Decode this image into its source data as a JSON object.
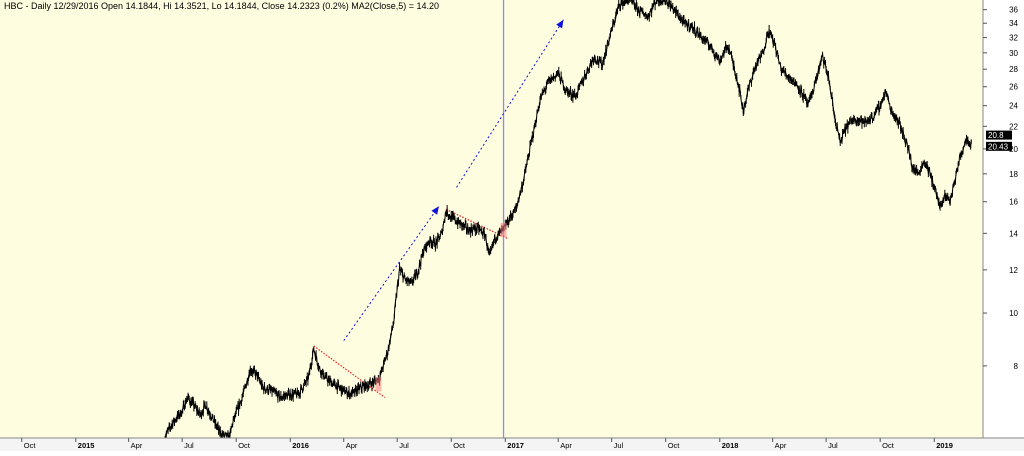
{
  "title": "HBC - Daily 12/29/2016 Open 14.1844, Hi 14.3521, Lo 14.1844, Close 14.2323 (0.2%) MA2(Close,5) = 14.20",
  "colors": {
    "background": "#fffde0",
    "price": "#000000",
    "vertical_line": "#8a8aff",
    "red_line": "#e02020",
    "blue_arrow": "#1010dd",
    "y_axis_bg": "#ffffff",
    "x_axis_bg": "#f4f4f4"
  },
  "chart_data": {
    "type": "line",
    "title": "HBC - Daily 12/29/2016 Open 14.1844, Hi 14.3521, Lo 14.1844, Close 14.2323 (0.2%) MA2(Close,5) = 14.20",
    "xlabel": "",
    "ylabel": "",
    "y_scale": "log",
    "ylim": [
      5.9,
      37.5
    ],
    "y_ticks": [
      8,
      10,
      12,
      14,
      16,
      18,
      20,
      22,
      24,
      26,
      28,
      30,
      32,
      34,
      36
    ],
    "x_ticks": [
      {
        "label": "Oct",
        "date": "2014-10-01"
      },
      {
        "label": "2015",
        "date": "2015-01-01"
      },
      {
        "label": "Apr",
        "date": "2015-04-01"
      },
      {
        "label": "Jul",
        "date": "2015-07-01"
      },
      {
        "label": "Oct",
        "date": "2015-10-01"
      },
      {
        "label": "2016",
        "date": "2016-01-01"
      },
      {
        "label": "Apr",
        "date": "2016-04-01"
      },
      {
        "label": "Jul",
        "date": "2016-07-01"
      },
      {
        "label": "Oct",
        "date": "2016-10-01"
      },
      {
        "label": "2017",
        "date": "2017-01-01"
      },
      {
        "label": "Apr",
        "date": "2017-04-01"
      },
      {
        "label": "Jul",
        "date": "2017-07-01"
      },
      {
        "label": "Oct",
        "date": "2017-10-01"
      },
      {
        "label": "2018",
        "date": "2018-01-01"
      },
      {
        "label": "Apr",
        "date": "2018-04-01"
      },
      {
        "label": "Jul",
        "date": "2018-07-01"
      },
      {
        "label": "Oct",
        "date": "2018-10-01"
      },
      {
        "label": "2019",
        "date": "2019-01-01"
      }
    ],
    "last_price_labels": [
      "20.8",
      "20.43"
    ],
    "series": [
      {
        "values": [
          [
            "2015-06-01",
            5.9
          ],
          [
            "2015-06-15",
            6.3
          ],
          [
            "2015-07-01",
            6.6
          ],
          [
            "2015-07-10",
            7.0
          ],
          [
            "2015-07-20",
            6.8
          ],
          [
            "2015-08-01",
            6.5
          ],
          [
            "2015-08-10",
            6.8
          ],
          [
            "2015-08-25",
            6.3
          ],
          [
            "2015-09-05",
            6.0
          ],
          [
            "2015-09-20",
            5.9
          ],
          [
            "2015-09-25",
            6.3
          ],
          [
            "2015-10-05",
            6.7
          ],
          [
            "2015-10-15",
            7.2
          ],
          [
            "2015-10-25",
            7.9
          ],
          [
            "2015-11-05",
            7.7
          ],
          [
            "2015-11-15",
            7.3
          ],
          [
            "2015-12-01",
            7.2
          ],
          [
            "2015-12-15",
            7.0
          ],
          [
            "2016-01-01",
            7.1
          ],
          [
            "2016-01-15",
            7.1
          ],
          [
            "2016-02-01",
            7.6
          ],
          [
            "2016-02-10",
            8.6
          ],
          [
            "2016-02-20",
            7.9
          ],
          [
            "2016-03-01",
            7.6
          ],
          [
            "2016-03-15",
            7.4
          ],
          [
            "2016-04-01",
            7.2
          ],
          [
            "2016-04-15",
            7.1
          ],
          [
            "2016-05-01",
            7.3
          ],
          [
            "2016-05-15",
            7.4
          ],
          [
            "2016-06-01",
            7.6
          ],
          [
            "2016-06-15",
            8.5
          ],
          [
            "2016-06-25",
            9.6
          ],
          [
            "2016-07-05",
            12.0
          ],
          [
            "2016-07-15",
            11.5
          ],
          [
            "2016-07-25",
            11.3
          ],
          [
            "2016-08-05",
            11.9
          ],
          [
            "2016-08-15",
            13.0
          ],
          [
            "2016-08-25",
            13.6
          ],
          [
            "2016-09-05",
            13.4
          ],
          [
            "2016-09-15",
            14.0
          ],
          [
            "2016-09-22",
            15.4
          ],
          [
            "2016-10-01",
            15.0
          ],
          [
            "2016-10-15",
            14.6
          ],
          [
            "2016-11-01",
            14.2
          ],
          [
            "2016-11-15",
            14.3
          ],
          [
            "2016-11-28",
            13.9
          ],
          [
            "2016-12-05",
            12.6
          ],
          [
            "2016-12-15",
            13.8
          ],
          [
            "2016-12-29",
            14.2
          ],
          [
            "2017-01-10",
            15.0
          ],
          [
            "2017-01-20",
            15.6
          ],
          [
            "2017-02-01",
            17.5
          ],
          [
            "2017-02-10",
            19.5
          ],
          [
            "2017-02-20",
            22.0
          ],
          [
            "2017-03-01",
            24.5
          ],
          [
            "2017-03-15",
            26.5
          ],
          [
            "2017-04-01",
            27.5
          ],
          [
            "2017-04-15",
            25.5
          ],
          [
            "2017-05-01",
            25.0
          ],
          [
            "2017-05-15",
            27.0
          ],
          [
            "2017-06-01",
            29.5
          ],
          [
            "2017-06-15",
            28.5
          ],
          [
            "2017-07-01",
            33.0
          ],
          [
            "2017-07-15",
            37.0
          ],
          [
            "2017-08-01",
            37.5
          ],
          [
            "2017-08-15",
            36.0
          ],
          [
            "2017-09-01",
            35.0
          ],
          [
            "2017-09-15",
            37.5
          ],
          [
            "2017-10-01",
            37.5
          ],
          [
            "2017-10-15",
            36.0
          ],
          [
            "2017-11-01",
            34.0
          ],
          [
            "2017-11-15",
            33.5
          ],
          [
            "2017-12-01",
            32.0
          ],
          [
            "2017-12-15",
            31.0
          ],
          [
            "2018-01-01",
            29.0
          ],
          [
            "2018-01-15",
            31.0
          ],
          [
            "2018-02-01",
            26.5
          ],
          [
            "2018-02-10",
            23.5
          ],
          [
            "2018-02-20",
            26.0
          ],
          [
            "2018-03-01",
            28.0
          ],
          [
            "2018-03-15",
            30.0
          ],
          [
            "2018-03-25",
            33.0
          ],
          [
            "2018-04-05",
            31.0
          ],
          [
            "2018-04-15",
            28.0
          ],
          [
            "2018-05-01",
            27.0
          ],
          [
            "2018-05-15",
            26.0
          ],
          [
            "2018-06-01",
            24.0
          ],
          [
            "2018-06-15",
            27.0
          ],
          [
            "2018-06-25",
            29.5
          ],
          [
            "2018-07-05",
            27.0
          ],
          [
            "2018-07-15",
            23.0
          ],
          [
            "2018-07-25",
            20.5
          ],
          [
            "2018-08-05",
            22.0
          ],
          [
            "2018-08-20",
            22.8
          ],
          [
            "2018-09-05",
            22.3
          ],
          [
            "2018-09-20",
            23.0
          ],
          [
            "2018-10-01",
            24.0
          ],
          [
            "2018-10-10",
            25.5
          ],
          [
            "2018-10-20",
            23.5
          ],
          [
            "2018-11-01",
            22.5
          ],
          [
            "2018-11-15",
            20.5
          ],
          [
            "2018-11-25",
            18.5
          ],
          [
            "2018-12-05",
            18.0
          ],
          [
            "2018-12-15",
            19.0
          ],
          [
            "2018-12-25",
            18.0
          ],
          [
            "2019-01-05",
            16.5
          ],
          [
            "2019-01-12",
            15.5
          ],
          [
            "2019-01-20",
            16.5
          ],
          [
            "2019-01-28",
            16.0
          ],
          [
            "2019-02-05",
            17.5
          ],
          [
            "2019-02-15",
            19.5
          ],
          [
            "2019-02-25",
            21.0
          ],
          [
            "2019-03-05",
            20.4
          ]
        ]
      }
    ],
    "annotations": {
      "vertical_line_date": "2016-12-29",
      "red_lines": [
        {
          "from": [
            "2016-02-10",
            8.7
          ],
          "to": [
            "2016-06-10",
            7.0
          ]
        },
        {
          "from": [
            "2016-09-22",
            15.5
          ],
          "to": [
            "2017-01-05",
            13.7
          ]
        }
      ],
      "blue_arrows": [
        {
          "from": [
            "2016-04-01",
            8.9
          ],
          "to": [
            "2016-09-10",
            15.7
          ]
        },
        {
          "from": [
            "2016-10-10",
            17.0
          ],
          "to": [
            "2017-04-10",
            34.5
          ]
        }
      ],
      "markers": [
        {
          "date": "2016-05-30",
          "value": 7.4
        },
        {
          "date": "2016-12-29",
          "value": 14.2
        }
      ]
    }
  }
}
